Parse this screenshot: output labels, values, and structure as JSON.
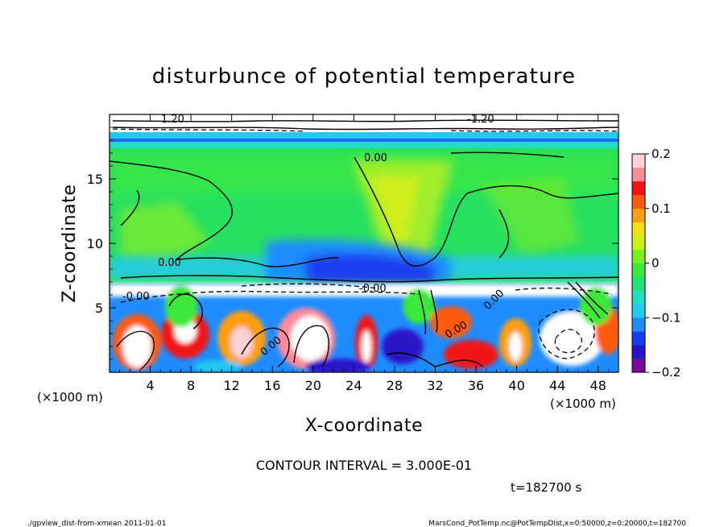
{
  "chart_data": {
    "type": "heatmap",
    "title": "disturbunce of potential temperature",
    "xlabel": "X-coordinate",
    "ylabel": "Z-coordinate",
    "x_unit": "(×1000 m)",
    "z_unit": "(×1000 m)",
    "x_ticks": [
      4,
      8,
      12,
      16,
      20,
      24,
      28,
      32,
      36,
      40,
      44,
      48
    ],
    "z_ticks": [
      5,
      10,
      15
    ],
    "xlim": [
      0,
      50
    ],
    "zlim": [
      0,
      20
    ],
    "colorbar": {
      "ticks": [
        "0.2",
        "0.1",
        "0",
        "−0.1",
        "−0.2"
      ],
      "tick_values": [
        0.2,
        0.1,
        0,
        -0.1,
        -0.2
      ],
      "range": [
        -0.2,
        0.2
      ],
      "colors": [
        "#7a0a9e",
        "#2a14c8",
        "#1a3cf0",
        "#1e8cff",
        "#24c8f0",
        "#20e0c0",
        "#22e07a",
        "#3ee83a",
        "#7aee1e",
        "#c8f01a",
        "#f0e016",
        "#ff9e10",
        "#ff5a10",
        "#f01414",
        "#ff8a9a",
        "#ffd2d8"
      ]
    },
    "contour_labels": [
      "0.00",
      "0.00",
      "0.00",
      "0.00",
      "0.00",
      "-0.00",
      "-0.00",
      "1.20",
      "-1.20"
    ],
    "contour_interval_text": "CONTOUR INTERVAL = 3.000E-01",
    "time_text": "t=182700  s"
  },
  "footer": {
    "left": "./gpview_dist-from-xmean  2011-01-01",
    "right": "MarsCond_PotTemp.nc@PotTempDist,x=0:50000,z=0:20000,t=182700"
  }
}
